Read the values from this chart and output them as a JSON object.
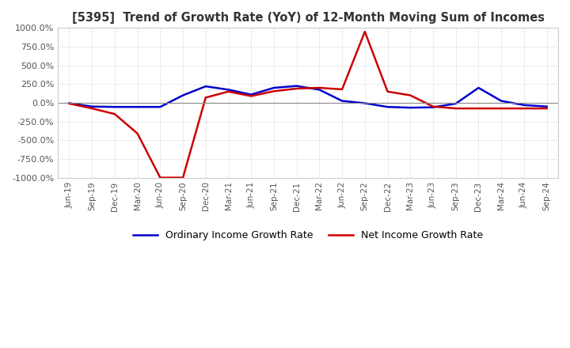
{
  "title": "[5395]  Trend of Growth Rate (YoY) of 12-Month Moving Sum of Incomes",
  "title_fontsize": 10.5,
  "background_color": "#ffffff",
  "plot_bg_color": "#ffffff",
  "grid_color": "#cccccc",
  "ylim": [
    -1000,
    1000
  ],
  "yticks": [
    -1000,
    -750,
    -500,
    -250,
    0,
    250,
    500,
    750,
    1000
  ],
  "ytick_labels": [
    "-1000.0%",
    "-750.0%",
    "-500.0%",
    "-250.0%",
    "0.0%",
    "250.0%",
    "500.0%",
    "750.0%",
    "1000.0%"
  ],
  "x_labels": [
    "Jun-19",
    "Sep-19",
    "Dec-19",
    "Mar-20",
    "Jun-20",
    "Sep-20",
    "Dec-20",
    "Mar-21",
    "Jun-21",
    "Sep-21",
    "Dec-21",
    "Mar-22",
    "Jun-22",
    "Sep-22",
    "Dec-22",
    "Mar-23",
    "Jun-23",
    "Sep-23",
    "Dec-23",
    "Mar-24",
    "Jun-24",
    "Sep-24"
  ],
  "ordinary_income_growth": [
    -5,
    -50,
    -55,
    -55,
    -55,
    100,
    220,
    175,
    110,
    200,
    225,
    175,
    25,
    -5,
    -55,
    -65,
    -60,
    -10,
    200,
    25,
    -30,
    -50
  ],
  "net_income_growth": [
    -10,
    -75,
    -150,
    -410,
    -1000,
    -1000,
    70,
    150,
    90,
    155,
    190,
    200,
    180,
    950,
    150,
    100,
    -50,
    -75,
    -75,
    -75,
    -75,
    -75
  ],
  "ordinary_color": "#0000cc",
  "net_color": "#cc0000",
  "line_width": 1.8,
  "legend_ordinary": "Ordinary Income Growth Rate",
  "legend_net": "Net Income Growth Rate"
}
